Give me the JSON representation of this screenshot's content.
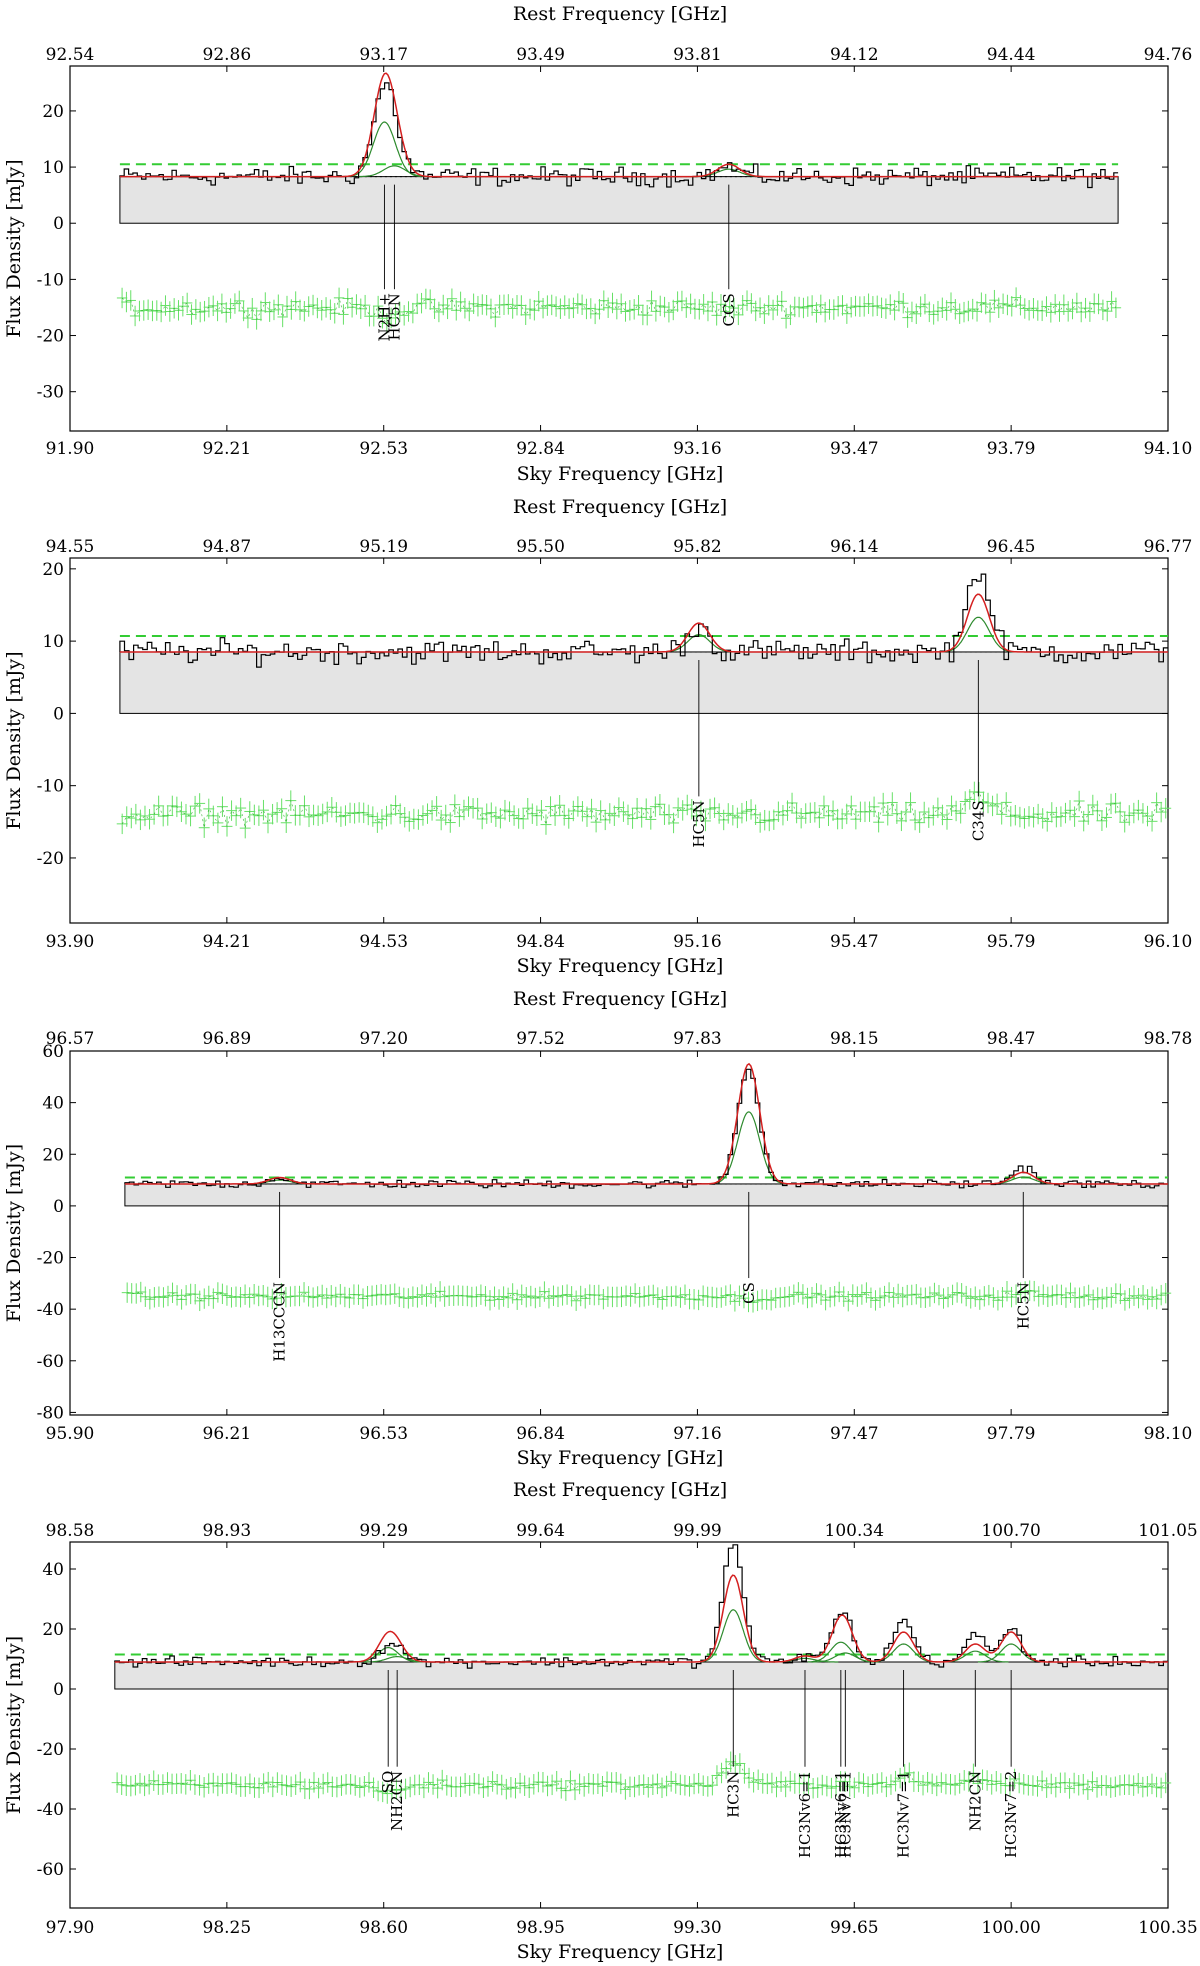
{
  "chart_data": [
    {
      "type": "line",
      "x_top_label": "Rest Frequency [GHz]",
      "x_bottom_label": "Sky Frequency [GHz]",
      "ylabel": "Flux Density [mJy]",
      "top_ticks": [
        "92.54",
        "92.86",
        "93.17",
        "93.49",
        "93.81",
        "94.12",
        "94.44",
        "94.76"
      ],
      "bottom_ticks": [
        "91.90",
        "92.21",
        "92.53",
        "92.84",
        "93.16",
        "93.47",
        "93.79",
        "94.10"
      ],
      "y_ticks": [
        20,
        10,
        0,
        -10,
        -20,
        -30
      ],
      "ylim": [
        -37,
        28
      ],
      "xlim": [
        91.9,
        94.1
      ],
      "spectrum_range": [
        92.0,
        94.0
      ],
      "baseline": 8.3,
      "residual_offset": -15,
      "threshold": 10.5,
      "lines": [
        {
          "name": "N2H+",
          "x": 92.53,
          "fit": 24.5,
          "obs": 23
        },
        {
          "name": "HC5N",
          "x": 92.55,
          "fit": 11.5,
          "obs": 11
        },
        {
          "name": "CCS",
          "x": 93.22,
          "fit": 10.5,
          "obs": 10
        }
      ]
    },
    {
      "type": "line",
      "x_top_label": "Rest Frequency [GHz]",
      "x_bottom_label": "Sky Frequency [GHz]",
      "ylabel": "Flux Density [mJy]",
      "top_ticks": [
        "94.55",
        "94.87",
        "95.19",
        "95.50",
        "95.82",
        "96.14",
        "96.45",
        "96.77"
      ],
      "bottom_ticks": [
        "93.90",
        "94.21",
        "94.53",
        "94.84",
        "95.16",
        "95.47",
        "95.79",
        "96.10"
      ],
      "y_ticks": [
        20,
        10,
        0,
        -10,
        -20
      ],
      "ylim": [
        -29,
        21.5
      ],
      "xlim": [
        93.9,
        96.1
      ],
      "spectrum_range": [
        94.0,
        96.1
      ],
      "baseline": 8.5,
      "residual_offset": -14,
      "threshold": 10.7,
      "lines": [
        {
          "name": "HC5N",
          "x": 95.16,
          "fit": 12.5,
          "obs": 12
        },
        {
          "name": "C34S",
          "x": 95.72,
          "fit": 16.5,
          "obs": 20
        }
      ]
    },
    {
      "type": "line",
      "x_top_label": "Rest Frequency [GHz]",
      "x_bottom_label": "Sky Frequency [GHz]",
      "ylabel": "Flux Density [mJy]",
      "top_ticks": [
        "96.57",
        "96.89",
        "97.20",
        "97.52",
        "97.83",
        "98.15",
        "98.47",
        "98.78"
      ],
      "bottom_ticks": [
        "95.90",
        "96.21",
        "96.53",
        "96.84",
        "97.16",
        "97.47",
        "97.79",
        "98.10"
      ],
      "y_ticks": [
        60,
        40,
        20,
        0,
        -20,
        -40,
        -60,
        -80
      ],
      "ylim": [
        -81,
        60
      ],
      "xlim": [
        95.9,
        98.1
      ],
      "spectrum_range": [
        96.01,
        98.1
      ],
      "baseline": 8.5,
      "residual_offset": -35,
      "threshold": 11,
      "lines": [
        {
          "name": "H13CCCN",
          "x": 96.32,
          "fit": 11,
          "obs": 11
        },
        {
          "name": "CS",
          "x": 97.26,
          "fit": 55,
          "obs": 53
        },
        {
          "name": "HC5N",
          "x": 97.81,
          "fit": 13,
          "obs": 15
        }
      ]
    },
    {
      "type": "line",
      "x_top_label": "Rest Frequency [GHz]",
      "x_bottom_label": "Sky Frequency [GHz]",
      "ylabel": "Flux Density [mJy]",
      "top_ticks": [
        "98.58",
        "98.93",
        "99.29",
        "99.64",
        "99.99",
        "100.34",
        "100.70",
        "101.05"
      ],
      "bottom_ticks": [
        "97.90",
        "98.25",
        "98.60",
        "98.95",
        "99.30",
        "99.65",
        "100.00",
        "100.35"
      ],
      "y_ticks": [
        40,
        20,
        0,
        -20,
        -40,
        -60
      ],
      "ylim": [
        -73,
        49
      ],
      "xlim": [
        97.9,
        100.35
      ],
      "spectrum_range": [
        98.0,
        100.35
      ],
      "baseline": 9,
      "residual_offset": -32,
      "threshold": 11.5,
      "lines": [
        {
          "name": "SO",
          "x": 98.61,
          "fit": 17,
          "obs": 13
        },
        {
          "name": "NH2CN",
          "x": 98.63,
          "fit": 12,
          "obs": 12
        },
        {
          "name": "HC3N",
          "x": 99.38,
          "fit": 38,
          "obs": 49
        },
        {
          "name": "HC3Nv6=1",
          "x": 99.54,
          "fit": 11,
          "obs": 11
        },
        {
          "name": "HC3Nv6=1",
          "x": 99.62,
          "fit": 20,
          "obs": 21
        },
        {
          "name": "HC3Nv7=1",
          "x": 99.63,
          "fit": 14,
          "obs": 14
        },
        {
          "name": "HC3Nv7=1",
          "x": 99.76,
          "fit": 19,
          "obs": 23
        },
        {
          "name": "NH2CN",
          "x": 99.92,
          "fit": 15,
          "obs": 18
        },
        {
          "name": "HC3Nv7=2",
          "x": 100.0,
          "fit": 19,
          "obs": 20
        }
      ]
    }
  ]
}
